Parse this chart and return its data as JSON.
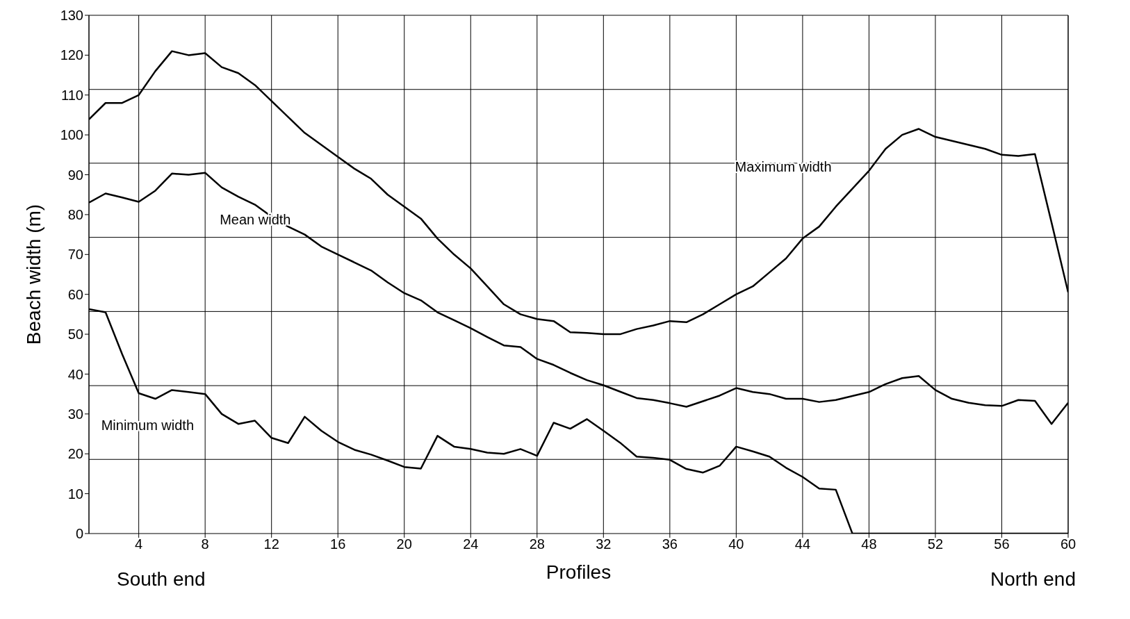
{
  "chart_data": {
    "type": "line",
    "xlabel": "Profiles",
    "ylabel": "Beach width (m)",
    "x": [
      1,
      2,
      3,
      4,
      5,
      6,
      7,
      8,
      9,
      10,
      11,
      12,
      13,
      14,
      15,
      16,
      17,
      18,
      19,
      20,
      21,
      22,
      23,
      24,
      25,
      26,
      27,
      28,
      29,
      30,
      31,
      32,
      33,
      34,
      35,
      36,
      37,
      38,
      39,
      40,
      41,
      42,
      43,
      44,
      45,
      46,
      47,
      48,
      49,
      50,
      51,
      52,
      53,
      54,
      55,
      56,
      57,
      58,
      59,
      60
    ],
    "series": [
      {
        "name": "Maximum width",
        "color": "#000000",
        "values": [
          103.9,
          108,
          108,
          110,
          116,
          121,
          120,
          120.5,
          117,
          115.5,
          112.5,
          108.5,
          104.5,
          100.5,
          97.5,
          94.5,
          91.5,
          89,
          85,
          82,
          79,
          74,
          70,
          66.5,
          62,
          57.5,
          55,
          53.8,
          53.3,
          50.5,
          50.3,
          50,
          50,
          51.3,
          52.2,
          53.3,
          53,
          55,
          57.5,
          60,
          62,
          65.5,
          69,
          74,
          77,
          82,
          86.5,
          91,
          96.5,
          100,
          101.5,
          99.5,
          98.5,
          97.5,
          96.5,
          95,
          94.7,
          95.2,
          78,
          60.5
        ]
      },
      {
        "name": "Mean width",
        "color": "#000000",
        "values": [
          83,
          85.3,
          84.3,
          83.2,
          86,
          90.3,
          90,
          90.5,
          86.8,
          84.5,
          82.5,
          79.5,
          77,
          75,
          72,
          70,
          68,
          66,
          63,
          60.3,
          58.5,
          55.5,
          53.5,
          51.5,
          49.3,
          47.2,
          46.8,
          43.8,
          42.3,
          40.3,
          38.5,
          37.2,
          35.6,
          34,
          33.5,
          32.7,
          31.8,
          33.2,
          34.6,
          36.5,
          35.5,
          35,
          33.8,
          33.8,
          33,
          33.5,
          34.5,
          35.5,
          37.5,
          39,
          39.5,
          36,
          33.8,
          32.8,
          32.2,
          32,
          33.5,
          33.3,
          27.5,
          32.8
        ]
      },
      {
        "name": "Minimum width",
        "color": "#000000",
        "values": [
          56.3,
          55.5,
          45,
          35.2,
          33.8,
          36,
          35.5,
          35,
          30,
          27.5,
          28.3,
          24,
          22.7,
          29.3,
          25.8,
          23,
          21,
          19.8,
          18.3,
          16.7,
          16.3,
          24.5,
          21.8,
          21.2,
          20.3,
          20,
          21.2,
          19.5,
          27.8,
          26.3,
          28.7,
          25.8,
          22.8,
          19.3,
          19,
          18.5,
          16.2,
          15.3,
          17,
          21.8,
          20.6,
          19.3,
          16.5,
          14.2,
          11.3,
          11,
          0,
          0,
          0,
          0,
          0,
          0,
          0,
          0,
          0,
          0,
          0,
          0,
          0,
          0
        ]
      }
    ],
    "xlim": [
      1,
      60
    ],
    "xticks": [
      4,
      8,
      12,
      16,
      20,
      24,
      28,
      32,
      36,
      40,
      44,
      48,
      52,
      56,
      60
    ],
    "ylim": [
      0,
      130
    ],
    "yticks": [
      0,
      10,
      20,
      30,
      40,
      50,
      60,
      70,
      80,
      90,
      100,
      110,
      120,
      130
    ],
    "grid": "x",
    "marker": "none",
    "line_style": "solid",
    "ref_lines": [
      {
        "axis": "y",
        "value": 18.6,
        "color": "#000000"
      },
      {
        "axis": "y",
        "value": 37.1,
        "color": "#000000"
      },
      {
        "axis": "y",
        "value": 55.7,
        "color": "#000000"
      },
      {
        "axis": "y",
        "value": 74.3,
        "color": "#000000"
      },
      {
        "axis": "y",
        "value": 92.9,
        "color": "#000000"
      },
      {
        "axis": "y",
        "value": 111.4,
        "color": "#000000"
      }
    ],
    "annotations": [
      "South end",
      "North end"
    ]
  }
}
